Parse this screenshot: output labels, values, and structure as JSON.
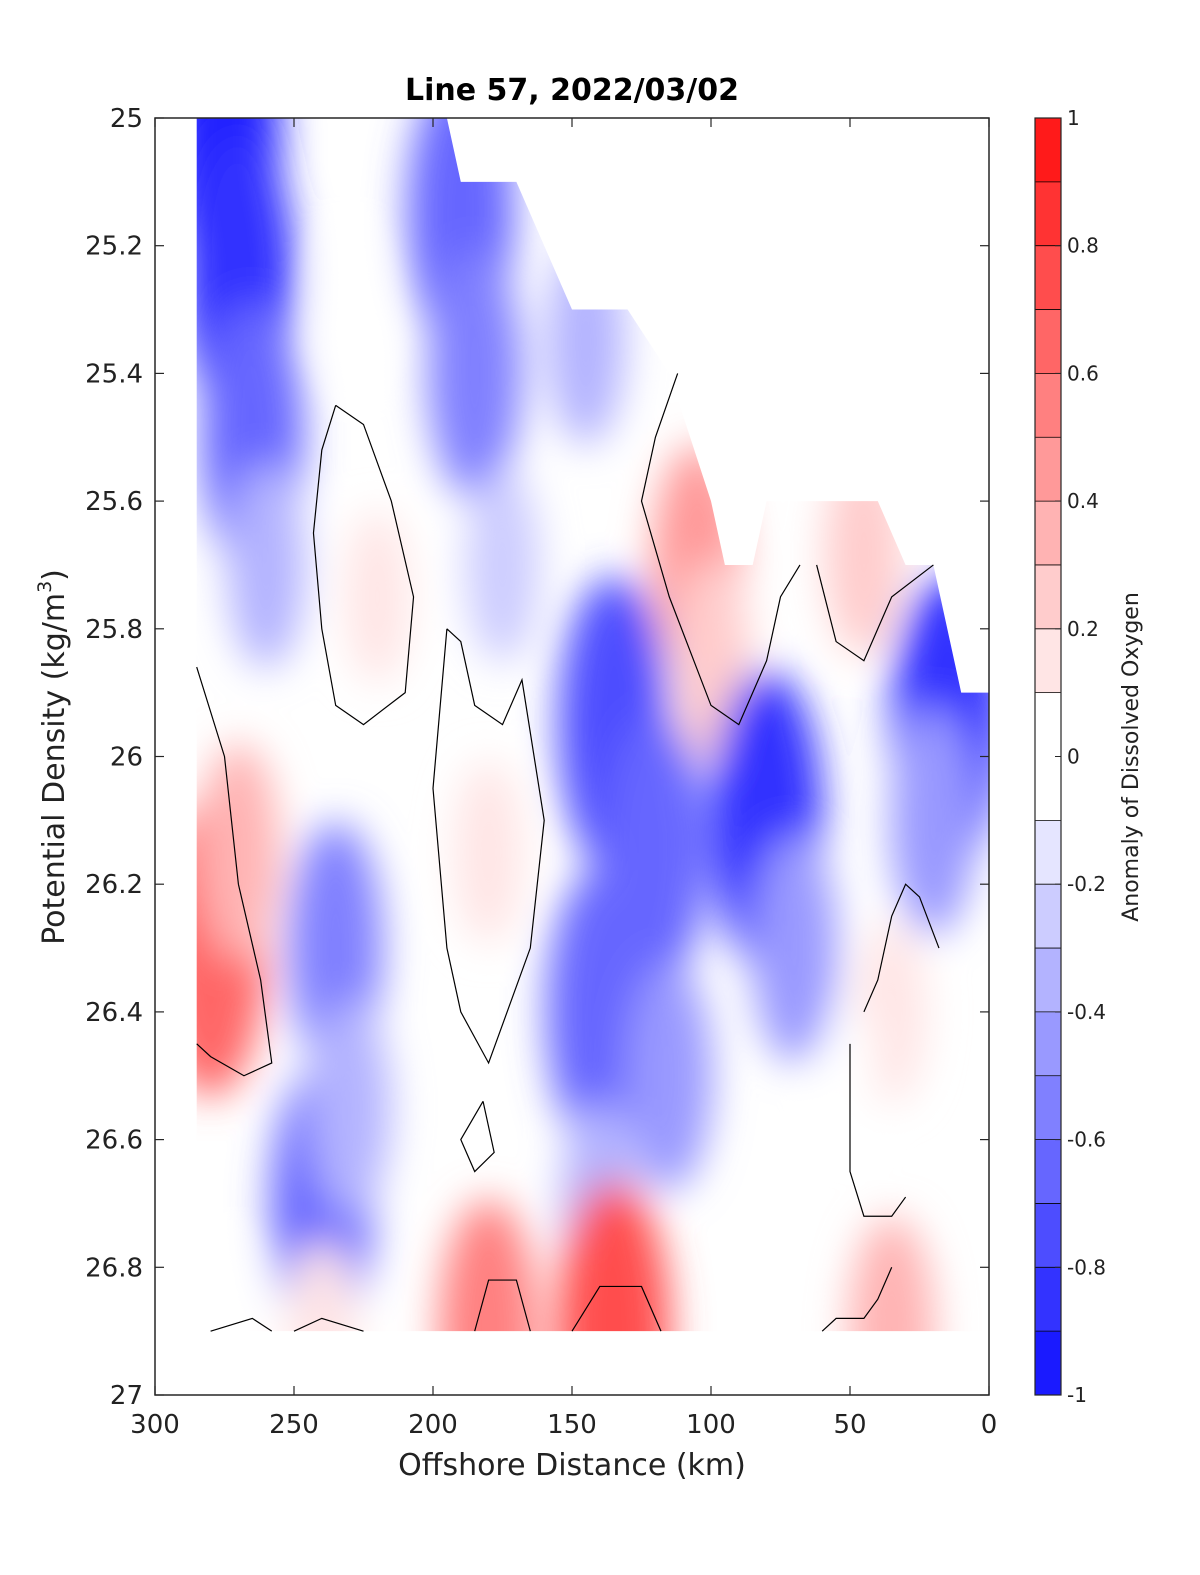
{
  "chart_data": {
    "type": "heatmap",
    "subtype": "filled-contour",
    "title": "Line 57, 2022/03/02",
    "xlabel": "Offshore Distance (km)",
    "ylabel_main": "Potential Density (kg/m",
    "ylabel_sup": "3",
    "ylabel_close": ")",
    "colorbar_label": "Anomaly of Dissolved Oxygen",
    "xlim": [
      300,
      0
    ],
    "ylim": [
      27,
      25
    ],
    "x_reversed": true,
    "y_reversed": true,
    "xticks": [
      300,
      250,
      200,
      150,
      100,
      50,
      0
    ],
    "xtick_labels": [
      "300",
      "250",
      "200",
      "150",
      "100",
      "50",
      "0"
    ],
    "yticks": [
      25,
      25.2,
      25.4,
      25.6,
      25.8,
      26,
      26.2,
      26.4,
      26.6,
      26.8,
      27
    ],
    "ytick_labels": [
      "25",
      "25.2",
      "25.4",
      "25.6",
      "25.8",
      "26",
      "26.2",
      "26.4",
      "26.6",
      "26.8",
      "27"
    ],
    "colorbar": {
      "range": [
        -1,
        1
      ],
      "ticks": [
        1,
        0.8,
        0.6,
        0.4,
        0.2,
        0,
        -0.2,
        -0.4,
        -0.6,
        -0.8,
        -1
      ],
      "tick_labels": [
        "1",
        "0.8",
        "0.6",
        "0.4",
        "0.2",
        "0",
        "-0.2",
        "-0.4",
        "-0.6",
        "-0.8",
        "-1"
      ],
      "levels": [
        -1,
        -0.9,
        -0.8,
        -0.7,
        -0.6,
        -0.5,
        -0.4,
        -0.3,
        -0.2,
        -0.1,
        0.1,
        0.2,
        0.3,
        0.4,
        0.5,
        0.6,
        0.7,
        0.8,
        0.9,
        1
      ],
      "colors": [
        "#0000ff",
        "#1a1aff",
        "#3333ff",
        "#4d4dff",
        "#6666ff",
        "#8080ff",
        "#9999ff",
        "#b3b3ff",
        "#ccccff",
        "#e5e5ff",
        "#ffffff",
        "#ffe5e5",
        "#ffcccc",
        "#ffb3b3",
        "#ff9999",
        "#ff8080",
        "#ff6666",
        "#ff4d4d",
        "#ff3333",
        "#ff1a1a",
        "#ff0000"
      ]
    },
    "data_extent": {
      "x_min": 0,
      "x_max": 285,
      "y_bottom": 26.9,
      "top_boundary": [
        [
          285,
          25.0
        ],
        [
          195,
          25.0
        ],
        [
          190,
          25.1
        ],
        [
          170,
          25.1
        ],
        [
          160,
          25.2
        ],
        [
          150,
          25.3
        ],
        [
          130,
          25.3
        ],
        [
          115,
          25.4
        ],
        [
          100,
          25.6
        ],
        [
          95,
          25.7
        ],
        [
          85,
          25.7
        ],
        [
          80,
          25.6
        ],
        [
          60,
          25.6
        ],
        [
          40,
          25.6
        ],
        [
          30,
          25.7
        ],
        [
          20,
          25.7
        ],
        [
          10,
          25.9
        ],
        [
          0,
          25.9
        ]
      ]
    },
    "anomaly_features": [
      {
        "x": 275,
        "y": 25.05,
        "value": -0.9
      },
      {
        "x": 270,
        "y": 25.25,
        "value": -0.8
      },
      {
        "x": 265,
        "y": 25.5,
        "value": -0.6
      },
      {
        "x": 260,
        "y": 25.7,
        "value": -0.3
      },
      {
        "x": 230,
        "y": 25.3,
        "value": 0.0
      },
      {
        "x": 220,
        "y": 25.75,
        "value": 0.15
      },
      {
        "x": 190,
        "y": 25.15,
        "value": -0.65
      },
      {
        "x": 185,
        "y": 25.4,
        "value": -0.5
      },
      {
        "x": 175,
        "y": 25.7,
        "value": -0.25
      },
      {
        "x": 145,
        "y": 25.35,
        "value": -0.3
      },
      {
        "x": 105,
        "y": 25.7,
        "value": 0.45
      },
      {
        "x": 100,
        "y": 25.85,
        "value": 0.3
      },
      {
        "x": 45,
        "y": 25.68,
        "value": 0.3
      },
      {
        "x": 15,
        "y": 25.95,
        "value": -0.85
      },
      {
        "x": 20,
        "y": 26.1,
        "value": -0.4
      },
      {
        "x": 135,
        "y": 25.95,
        "value": -0.7
      },
      {
        "x": 120,
        "y": 26.15,
        "value": -0.6
      },
      {
        "x": 80,
        "y": 26.1,
        "value": -0.85
      },
      {
        "x": 70,
        "y": 26.3,
        "value": -0.4
      },
      {
        "x": 180,
        "y": 26.15,
        "value": 0.2
      },
      {
        "x": 280,
        "y": 26.3,
        "value": 0.7
      },
      {
        "x": 270,
        "y": 26.15,
        "value": 0.35
      },
      {
        "x": 235,
        "y": 26.3,
        "value": -0.5
      },
      {
        "x": 240,
        "y": 26.7,
        "value": -0.6
      },
      {
        "x": 230,
        "y": 26.55,
        "value": -0.35
      },
      {
        "x": 140,
        "y": 26.4,
        "value": -0.65
      },
      {
        "x": 115,
        "y": 26.5,
        "value": -0.4
      },
      {
        "x": 140,
        "y": 26.7,
        "value": -0.3
      },
      {
        "x": 35,
        "y": 26.4,
        "value": 0.2
      },
      {
        "x": 50,
        "y": 26.5,
        "value": 0.0
      },
      {
        "x": 135,
        "y": 26.9,
        "value": 0.8
      },
      {
        "x": 180,
        "y": 26.9,
        "value": 0.55
      },
      {
        "x": 35,
        "y": 26.9,
        "value": 0.4
      },
      {
        "x": 240,
        "y": 26.9,
        "value": 0.2
      },
      {
        "x": 270,
        "y": 26.9,
        "value": 0.1
      }
    ],
    "zero_contours": [
      [
        [
          235,
          25.45
        ],
        [
          225,
          25.48
        ],
        [
          215,
          25.6
        ],
        [
          207,
          25.75
        ],
        [
          210,
          25.9
        ],
        [
          225,
          25.95
        ],
        [
          235,
          25.92
        ],
        [
          240,
          25.8
        ],
        [
          243,
          25.65
        ],
        [
          240,
          25.52
        ],
        [
          235,
          25.45
        ]
      ],
      [
        [
          285,
          25.86
        ],
        [
          275,
          26.0
        ],
        [
          270,
          26.2
        ],
        [
          262,
          26.35
        ],
        [
          258,
          26.48
        ],
        [
          268,
          26.5
        ],
        [
          280,
          26.47
        ],
        [
          285,
          26.45
        ]
      ],
      [
        [
          195,
          25.8
        ],
        [
          190,
          25.82
        ],
        [
          185,
          25.92
        ],
        [
          175,
          25.95
        ],
        [
          168,
          25.88
        ],
        [
          160,
          26.1
        ],
        [
          165,
          26.3
        ],
        [
          180,
          26.48
        ],
        [
          190,
          26.4
        ],
        [
          195,
          26.3
        ],
        [
          200,
          26.05
        ],
        [
          195,
          25.8
        ]
      ],
      [
        [
          182,
          26.54
        ],
        [
          190,
          26.6
        ],
        [
          185,
          26.65
        ],
        [
          178,
          26.62
        ],
        [
          182,
          26.54
        ]
      ],
      [
        [
          112,
          25.4
        ],
        [
          120,
          25.5
        ],
        [
          125,
          25.6
        ],
        [
          115,
          25.75
        ],
        [
          100,
          25.92
        ],
        [
          90,
          25.95
        ],
        [
          80,
          25.85
        ],
        [
          75,
          25.75
        ],
        [
          68,
          25.7
        ]
      ],
      [
        [
          62,
          25.7
        ],
        [
          55,
          25.82
        ],
        [
          45,
          25.85
        ],
        [
          40,
          25.8
        ],
        [
          35,
          25.75
        ],
        [
          20,
          25.7
        ]
      ],
      [
        [
          45,
          26.4
        ],
        [
          40,
          26.35
        ],
        [
          35,
          26.25
        ],
        [
          30,
          26.2
        ],
        [
          25,
          26.22
        ],
        [
          18,
          26.3
        ]
      ],
      [
        [
          50,
          26.45
        ],
        [
          50,
          26.65
        ],
        [
          45,
          26.72
        ],
        [
          35,
          26.72
        ],
        [
          30,
          26.69
        ]
      ],
      [
        [
          185,
          26.9
        ],
        [
          180,
          26.82
        ],
        [
          170,
          26.82
        ],
        [
          165,
          26.9
        ]
      ],
      [
        [
          150,
          26.9
        ],
        [
          140,
          26.83
        ],
        [
          125,
          26.83
        ],
        [
          118,
          26.9
        ]
      ],
      [
        [
          60,
          26.9
        ],
        [
          55,
          26.88
        ],
        [
          45,
          26.88
        ],
        [
          40,
          26.85
        ],
        [
          35,
          26.8
        ]
      ],
      [
        [
          280,
          26.9
        ],
        [
          265,
          26.88
        ],
        [
          258,
          26.9
        ]
      ],
      [
        [
          250,
          26.9
        ],
        [
          240,
          26.88
        ],
        [
          225,
          26.9
        ]
      ]
    ]
  }
}
